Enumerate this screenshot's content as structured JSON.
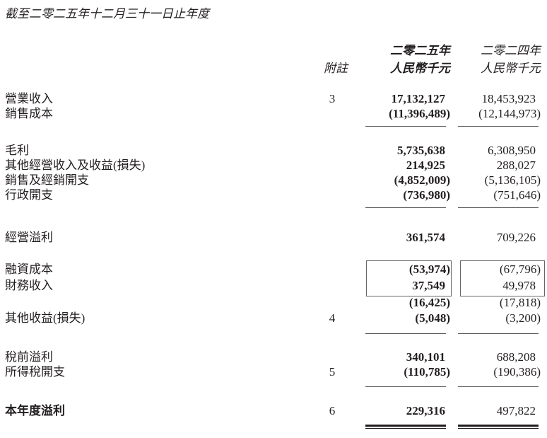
{
  "title": "截至二零二五年十二月三十一日止年度",
  "header": {
    "note_label": "附註",
    "col1_year": "二零二五年",
    "col1_unit": "人民幣千元",
    "col2_year": "二零二四年",
    "col2_unit": "人民幣千元"
  },
  "rows": [
    {
      "label": "營業收入",
      "note": "3",
      "y2025": "17,132,127",
      "y2024": "18,453,923"
    },
    {
      "label": "銷售成本",
      "note": "",
      "y2025": "(11,396,489)",
      "y2024": "(12,144,973)"
    },
    {
      "label": "毛利",
      "note": "",
      "y2025": "5,735,638",
      "y2024": "6,308,950"
    },
    {
      "label": "其他經營收入及收益(損失)",
      "note": "",
      "y2025": "214,925",
      "y2024": "288,027"
    },
    {
      "label": "銷售及經銷開支",
      "note": "",
      "y2025": "(4,852,009)",
      "y2024": "(5,136,105)"
    },
    {
      "label": "行政開支",
      "note": "",
      "y2025": "(736,980)",
      "y2024": "(751,646)"
    },
    {
      "label": "經營溢利",
      "note": "",
      "y2025": "361,574",
      "y2024": "709,226"
    },
    {
      "label": "融資成本",
      "note": "",
      "y2025": "(53,974)",
      "y2024": "(67,796)"
    },
    {
      "label": "財務收入",
      "note": "",
      "y2025": "37,549",
      "y2024": "49,978"
    },
    {
      "label": "",
      "note": "",
      "y2025": "(16,425)",
      "y2024": "(17,818)"
    },
    {
      "label": "其他收益(損失)",
      "note": "4",
      "y2025": "(5,048)",
      "y2024": "(3,200)"
    },
    {
      "label": "稅前溢利",
      "note": "",
      "y2025": "340,101",
      "y2024": "688,208"
    },
    {
      "label": "所得稅開支",
      "note": "5",
      "y2025": "(110,785)",
      "y2024": "(190,386)"
    },
    {
      "label": "本年度溢利",
      "note": "6",
      "y2025": "229,316",
      "y2024": "497,822"
    }
  ]
}
